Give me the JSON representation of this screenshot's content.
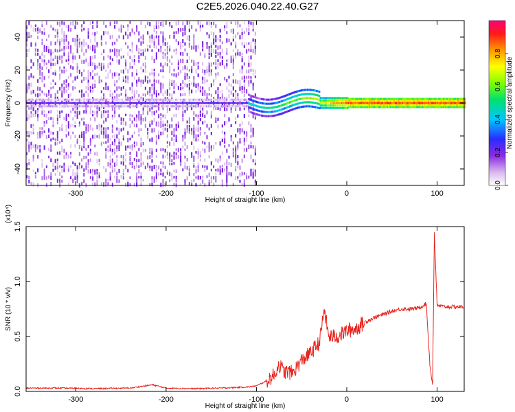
{
  "title": "C2E5.2026.040.22.40.G27",
  "chart_data": [
    {
      "type": "heatmap",
      "xlabel": "Height of straight line (km)",
      "ylabel": "Frequency (Hz)",
      "xlim": [
        -355,
        130
      ],
      "ylim": [
        -50,
        50
      ],
      "xticks": [
        "-300",
        "-200",
        "-100",
        "0",
        "100"
      ],
      "yticks": [
        "-40",
        "-20",
        "0",
        "20",
        "40"
      ],
      "colorbar": {
        "label": "Normalized spectral amplitude",
        "range": [
          0,
          1
        ],
        "ticks": [
          "0.0",
          "0.2",
          "0.4",
          "0.6",
          "0.8"
        ]
      },
      "features": {
        "scatter_region_x": [
          -355,
          -100
        ],
        "center_ridge_freq_hz": 0
      }
    },
    {
      "type": "line",
      "xlabel": "Height of straight line (km)",
      "ylabel": "SNR (10 * v/v)",
      "y_multiplier": "(x10⁴)",
      "xlim": [
        -355,
        130
      ],
      "ylim": [
        0,
        1.5
      ],
      "xticks": [
        "-300",
        "-200",
        "-100",
        "0",
        "100"
      ],
      "yticks": [
        "0.0",
        "0.5",
        "1.0",
        "1.5"
      ],
      "color": "#e8221c",
      "series": [
        {
          "x": [
            -355,
            -320,
            -280,
            -240,
            -215,
            -200,
            -170,
            -140,
            -110,
            -100,
            -90,
            -80,
            -75,
            -70,
            -60,
            -50,
            -40,
            -30,
            -25,
            -20,
            -10,
            0,
            10,
            20,
            30,
            40,
            50,
            60,
            70,
            80,
            88,
            92,
            95,
            97,
            100,
            110,
            120,
            130
          ],
          "y": [
            0.03,
            0.03,
            0.025,
            0.03,
            0.06,
            0.03,
            0.025,
            0.03,
            0.04,
            0.05,
            0.09,
            0.15,
            0.25,
            0.18,
            0.17,
            0.28,
            0.35,
            0.45,
            0.75,
            0.5,
            0.5,
            0.55,
            0.57,
            0.63,
            0.67,
            0.7,
            0.73,
            0.75,
            0.75,
            0.76,
            0.8,
            0.25,
            0.06,
            1.45,
            0.78,
            0.77,
            0.77,
            0.77
          ]
        }
      ]
    }
  ]
}
